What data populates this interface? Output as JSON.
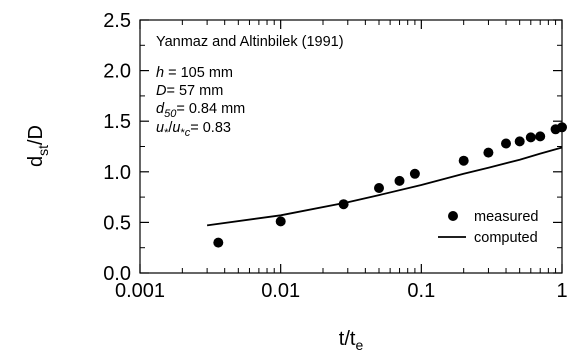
{
  "chart_data": {
    "type": "scatter",
    "x_scale": "log",
    "xlabel": {
      "main": "t/t",
      "sub": "e"
    },
    "ylabel": {
      "main": "d",
      "sub": "st",
      "suffix": "/D"
    },
    "xlim": [
      0.001,
      1
    ],
    "ylim": [
      0,
      2.5
    ],
    "x_ticks": [
      0.001,
      0.01,
      0.1,
      1
    ],
    "x_tick_labels": [
      "0.001",
      "0.01",
      "0.1",
      "1"
    ],
    "y_ticks": [
      0.0,
      0.5,
      1.0,
      1.5,
      2.0,
      2.5
    ],
    "y_tick_labels": [
      "0.0",
      "0.5",
      "1.0",
      "1.5",
      "2.0",
      "2.5"
    ],
    "grid": false,
    "legend_position": "bottom-right",
    "annotations": {
      "title": "Yanmaz and Altinbilek (1991)",
      "h": {
        "symbol": "h",
        "text": " = 105 mm"
      },
      "D": {
        "symbol": "D",
        "text": "= 57 mm"
      },
      "d50": {
        "symbol": "d",
        "sub": "50",
        "text": "= 0.84 mm"
      },
      "u": {
        "symbol": "u",
        "star": "*",
        "sep": "/",
        "symbol2": "u",
        "star2": "*",
        "sub2": "c",
        "text": "= 0.83"
      }
    },
    "series": [
      {
        "name": "measured",
        "kind": "markers",
        "color": "#000000",
        "x": [
          0.0036,
          0.01,
          0.028,
          0.05,
          0.07,
          0.09,
          0.2,
          0.3,
          0.4,
          0.5,
          0.6,
          0.7,
          0.9,
          1.0
        ],
        "y": [
          0.3,
          0.51,
          0.68,
          0.84,
          0.91,
          0.98,
          1.11,
          1.19,
          1.28,
          1.3,
          1.34,
          1.35,
          1.42,
          1.44
        ]
      },
      {
        "name": "computed",
        "kind": "line",
        "color": "#000000",
        "x": [
          0.003,
          0.01,
          0.03,
          0.05,
          0.1,
          0.2,
          0.3,
          0.5,
          0.7,
          1.0
        ],
        "y": [
          0.47,
          0.57,
          0.7,
          0.77,
          0.87,
          0.98,
          1.04,
          1.12,
          1.18,
          1.24
        ]
      }
    ]
  }
}
